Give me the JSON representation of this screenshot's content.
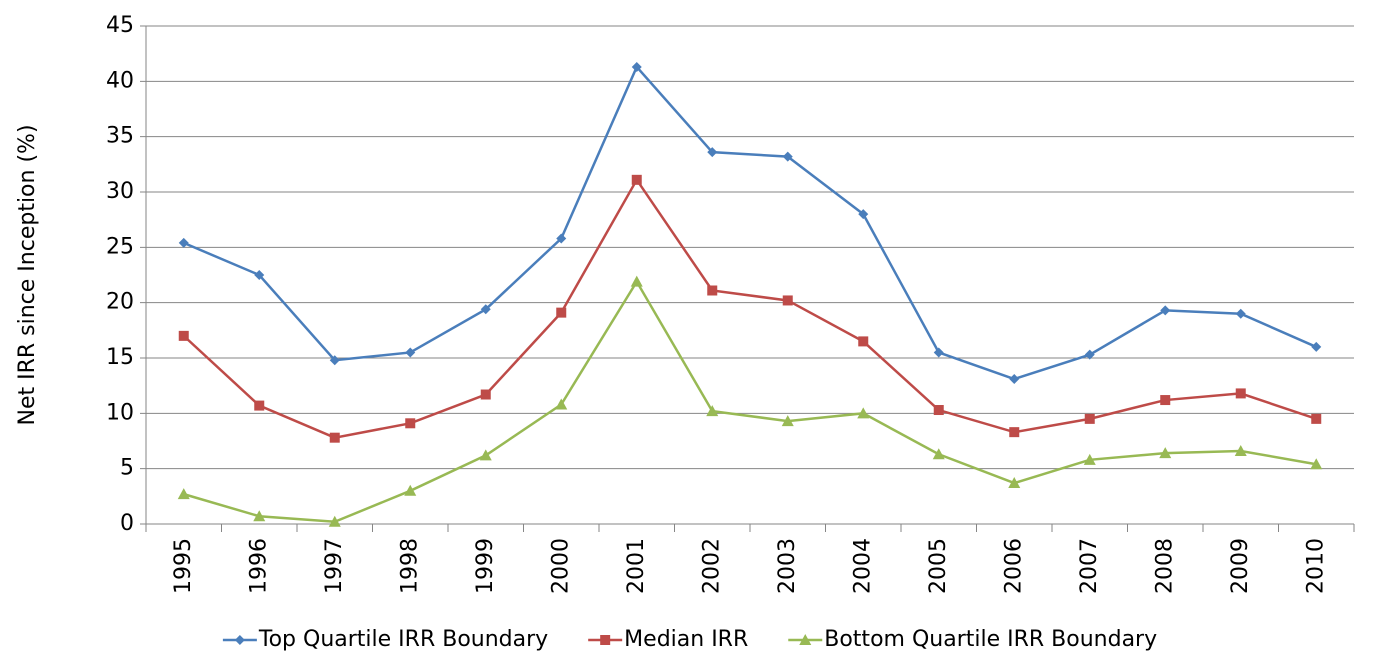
{
  "chart_data": {
    "type": "line",
    "ylabel": "Net IRR since Inception (%)",
    "categories": [
      "1995",
      "1996",
      "1997",
      "1998",
      "1999",
      "2000",
      "2001",
      "2002",
      "2003",
      "2004",
      "2005",
      "2006",
      "2007",
      "2008",
      "2009",
      "2010"
    ],
    "series": [
      {
        "name": "Top Quartile IRR Boundary",
        "color": "#4a7ebb",
        "marker": "diamond",
        "values": [
          25.4,
          22.5,
          14.8,
          15.5,
          19.4,
          25.8,
          41.3,
          33.6,
          33.2,
          28.0,
          15.5,
          13.1,
          15.3,
          19.3,
          19.0,
          16.0
        ]
      },
      {
        "name": "Median IRR",
        "color": "#be4b48",
        "marker": "square",
        "values": [
          17.0,
          10.7,
          7.8,
          9.1,
          11.7,
          19.1,
          31.1,
          21.1,
          20.2,
          16.5,
          10.3,
          8.3,
          9.5,
          11.2,
          11.8,
          9.5
        ]
      },
      {
        "name": "Bottom Quartile IRR Boundary",
        "color": "#98b954",
        "marker": "triangle",
        "values": [
          2.7,
          0.7,
          0.2,
          3.0,
          6.2,
          10.8,
          21.9,
          10.2,
          9.3,
          10.0,
          6.3,
          3.7,
          5.8,
          6.4,
          6.6,
          5.4
        ]
      }
    ],
    "ylim": [
      0,
      45
    ],
    "yticks": [
      0,
      5,
      10,
      15,
      20,
      25,
      30,
      35,
      40,
      45
    ],
    "grid": true,
    "legend": "bottom"
  }
}
